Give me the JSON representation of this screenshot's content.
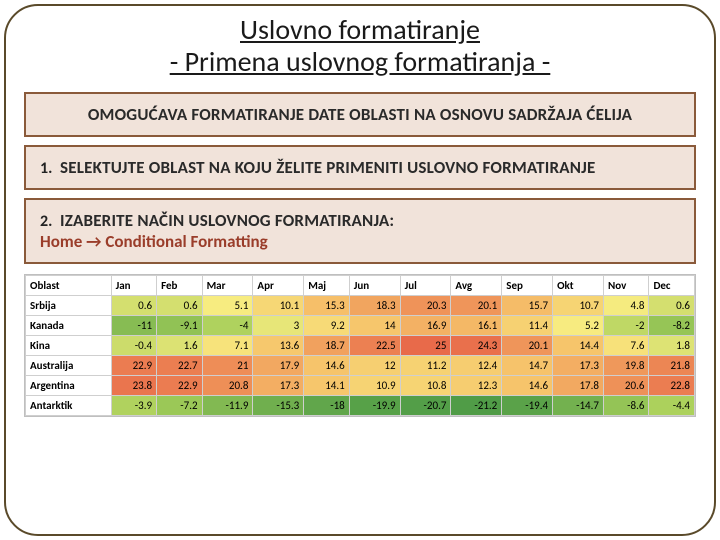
{
  "title": {
    "line1": "Uslovno formatiranje",
    "line2": "- Primena uslovnog formatiranja -"
  },
  "panels": {
    "intro": "OMOGUĆAVA FORMATIRANJE DATE OBLASTI NA OSNOVU SADRŽAJA ĆELIJA",
    "step1_num": "1.",
    "step1": "SELEKTUJTE OBLAST NA KOJU ŽELITE PRIMENITI USLOVNO FORMATIRANJE",
    "step2_num": "2.",
    "step2": "IZABERITE NAČIN USLOVNOG FORMATIRANJA:",
    "step2_sub": "Home → Conditional Formatting"
  },
  "table": {
    "header_label": "Oblast",
    "months": [
      "Jan",
      "Feb",
      "Mar",
      "Apr",
      "Maj",
      "Jun",
      "Jul",
      "Avg",
      "Sep",
      "Okt",
      "Nov",
      "Dec"
    ],
    "rows": [
      {
        "label": "Srbija",
        "values": [
          0.6,
          0.6,
          5.1,
          10.1,
          15.3,
          18.3,
          20.3,
          20.1,
          15.7,
          10.7,
          4.8,
          0.6
        ]
      },
      {
        "label": "Kanada",
        "values": [
          -11,
          -9.1,
          -4,
          3,
          9.2,
          14,
          16.9,
          16.1,
          11.4,
          5.2,
          -2,
          -8.2
        ]
      },
      {
        "label": "Kina",
        "values": [
          -0.4,
          1.6,
          7.1,
          13.6,
          18.7,
          22.5,
          25,
          24.3,
          20.1,
          14.4,
          7.6,
          1.8
        ]
      },
      {
        "label": "Australija",
        "values": [
          22.9,
          22.7,
          21,
          17.9,
          14.6,
          12,
          11.2,
          12.4,
          14.7,
          17.3,
          19.8,
          21.8
        ]
      },
      {
        "label": "Argentina",
        "values": [
          23.8,
          22.9,
          20.8,
          17.3,
          14.1,
          10.9,
          10.8,
          12.3,
          14.6,
          17.8,
          20.6,
          22.8
        ]
      },
      {
        "label": "Antarktik",
        "values": [
          -3.9,
          -7.2,
          -11.9,
          -15.3,
          -18,
          -19.9,
          -20.7,
          -21.2,
          -19.4,
          -14.7,
          -8.6,
          -4.4
        ]
      }
    ],
    "color_scale": {
      "min_value": -21.2,
      "max_value": 25,
      "stops": [
        {
          "at": -22,
          "color": "#4c9a46"
        },
        {
          "at": -5,
          "color": "#a7cf5a"
        },
        {
          "at": 5,
          "color": "#f7ec80"
        },
        {
          "at": 15,
          "color": "#f6c26a"
        },
        {
          "at": 25,
          "color": "#e86a4a"
        }
      ]
    },
    "cell_fontsize": 11,
    "border_color": "#cfcfcf"
  }
}
